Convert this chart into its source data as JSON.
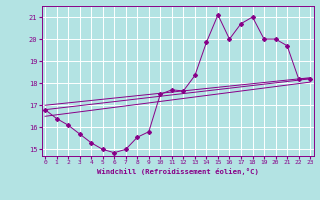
{
  "xlabel": "Windchill (Refroidissement éolien,°C)",
  "background_color": "#b3e3e3",
  "grid_color": "#ffffff",
  "line_color": "#880088",
  "x_ticks": [
    0,
    1,
    2,
    3,
    4,
    5,
    6,
    7,
    8,
    9,
    10,
    11,
    12,
    13,
    14,
    15,
    16,
    17,
    18,
    19,
    20,
    21,
    22,
    23
  ],
  "y_ticks": [
    15,
    16,
    17,
    18,
    19,
    20,
    21
  ],
  "ylim": [
    14.7,
    21.5
  ],
  "xlim": [
    -0.3,
    23.3
  ],
  "curve1_x": [
    0,
    1,
    2,
    3,
    4,
    5,
    6,
    7,
    8,
    9,
    10,
    11,
    12,
    13,
    14,
    15,
    16,
    17,
    18,
    19,
    20,
    21,
    22,
    23
  ],
  "curve1_y": [
    16.8,
    16.4,
    16.1,
    15.7,
    15.3,
    15.0,
    14.85,
    15.0,
    15.55,
    15.8,
    17.5,
    17.7,
    17.65,
    18.35,
    19.85,
    21.1,
    20.0,
    20.7,
    21.0,
    20.0,
    20.0,
    19.7,
    18.2,
    18.2
  ],
  "line1_x": [
    0,
    23
  ],
  "line1_y": [
    16.8,
    18.2
  ],
  "line2_x": [
    0,
    23
  ],
  "line2_y": [
    16.5,
    18.05
  ],
  "line3_x": [
    0,
    23
  ],
  "line3_y": [
    17.0,
    18.25
  ]
}
